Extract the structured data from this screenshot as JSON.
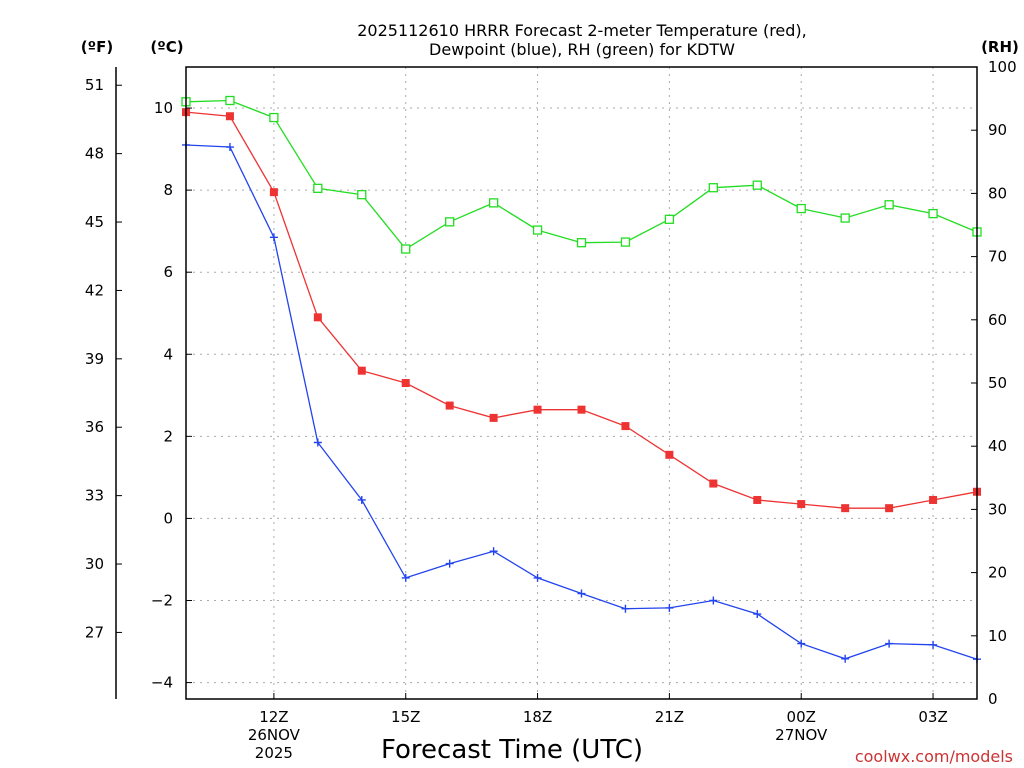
{
  "chart_data": {
    "type": "line",
    "title_lines": [
      "2025112610 HRRR Forecast 2-meter Temperature (red),",
      "Dewpoint (blue), RH (green) for KDTW"
    ],
    "xlabel": "Forecast Time (UTC)",
    "credit": "coolwx.com/models",
    "unit_labels": {
      "left_f": "(ºF)",
      "left_c": "(ºC)",
      "right_rh": "(RH)"
    },
    "x_hours_utc": [
      10,
      11,
      12,
      13,
      14,
      15,
      16,
      17,
      18,
      19,
      20,
      21,
      22,
      23,
      24,
      25,
      26,
      27,
      28
    ],
    "xlim": [
      10,
      28
    ],
    "x_ticks": [
      {
        "hour": 12,
        "lines": [
          "12Z",
          "26NOV",
          "2025"
        ]
      },
      {
        "hour": 15,
        "lines": [
          "15Z"
        ]
      },
      {
        "hour": 18,
        "lines": [
          "18Z"
        ]
      },
      {
        "hour": 21,
        "lines": [
          "21Z"
        ]
      },
      {
        "hour": 24,
        "lines": [
          "00Z",
          "27NOV"
        ]
      },
      {
        "hour": 27,
        "lines": [
          "03Z"
        ]
      }
    ],
    "celsius_axis": {
      "ylim": [
        -4.4,
        11.0
      ],
      "ticks": [
        -4,
        -2,
        0,
        2,
        4,
        6,
        8,
        10
      ]
    },
    "fahrenheit_axis": {
      "ticks": [
        27,
        30,
        33,
        36,
        39,
        42,
        45,
        48,
        51
      ]
    },
    "rh_axis": {
      "ylim": [
        0,
        100
      ],
      "ticks": [
        0,
        10,
        20,
        30,
        40,
        50,
        60,
        70,
        80,
        90,
        100
      ]
    },
    "series": [
      {
        "name": "Temperature",
        "color": "#ee3333",
        "marker": "filled-square",
        "units": "C",
        "values": [
          9.9,
          9.8,
          7.95,
          4.9,
          3.6,
          3.3,
          2.75,
          2.45,
          2.65,
          2.65,
          2.25,
          1.55,
          0.85,
          0.45,
          0.35,
          0.25,
          0.25,
          0.45,
          0.65
        ]
      },
      {
        "name": "Dewpoint",
        "color": "#2244ee",
        "marker": "plus",
        "units": "C",
        "values": [
          9.1,
          9.05,
          6.85,
          1.85,
          0.45,
          -1.45,
          -1.1,
          -0.8,
          -1.45,
          -1.83,
          -2.2,
          -2.18,
          -2.0,
          -2.33,
          -3.05,
          -3.42,
          -3.05,
          -3.08,
          -3.43
        ]
      },
      {
        "name": "RH",
        "color": "#22dd22",
        "marker": "open-square",
        "units": "%",
        "values": [
          94.5,
          94.7,
          92.0,
          80.8,
          79.8,
          71.2,
          75.5,
          78.5,
          74.2,
          72.2,
          72.3,
          75.9,
          80.9,
          81.3,
          77.6,
          76.1,
          78.2,
          76.8,
          73.9
        ]
      }
    ]
  }
}
